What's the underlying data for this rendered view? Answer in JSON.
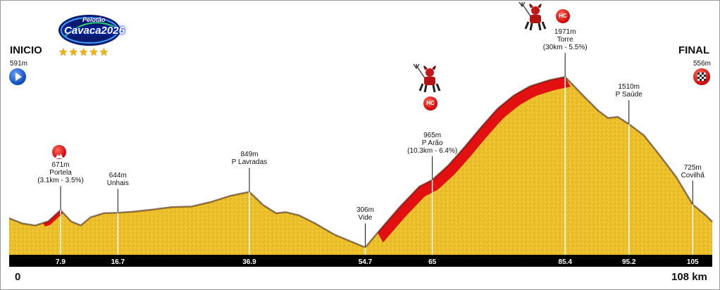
{
  "chart_data": {
    "type": "area",
    "title": "",
    "xlabel": "",
    "ylabel": "",
    "xlim": [
      0,
      108
    ],
    "x_unit": "km",
    "y_unit": "m",
    "profile": [
      [
        0,
        591
      ],
      [
        2,
        540
      ],
      [
        4,
        520
      ],
      [
        6,
        560
      ],
      [
        7.9,
        671
      ],
      [
        9.5,
        560
      ],
      [
        11,
        520
      ],
      [
        12.5,
        600
      ],
      [
        14.5,
        640
      ],
      [
        16.7,
        644
      ],
      [
        19,
        655
      ],
      [
        22,
        675
      ],
      [
        25,
        700
      ],
      [
        28,
        705
      ],
      [
        31,
        750
      ],
      [
        34,
        810
      ],
      [
        36.9,
        849
      ],
      [
        39,
        720
      ],
      [
        41,
        640
      ],
      [
        42.5,
        650
      ],
      [
        44.5,
        620
      ],
      [
        47,
        540
      ],
      [
        50,
        430
      ],
      [
        54.7,
        306
      ],
      [
        57,
        480
      ],
      [
        60,
        700
      ],
      [
        63,
        900
      ],
      [
        65,
        965
      ],
      [
        67.5,
        1110
      ],
      [
        70,
        1290
      ],
      [
        72.5,
        1480
      ],
      [
        75,
        1660
      ],
      [
        77.5,
        1790
      ],
      [
        80,
        1880
      ],
      [
        83,
        1940
      ],
      [
        85.4,
        1971
      ],
      [
        88,
        1800
      ],
      [
        90.5,
        1640
      ],
      [
        92,
        1570
      ],
      [
        93.5,
        1580
      ],
      [
        95.2,
        1510
      ],
      [
        97.5,
        1400
      ],
      [
        100,
        1200
      ],
      [
        102.5,
        990
      ],
      [
        105,
        725
      ],
      [
        107,
        620
      ],
      [
        108,
        556
      ]
    ],
    "climbs": [
      {
        "from": 5.2,
        "to": 7.9
      },
      {
        "from": 56.6,
        "to": 65
      },
      {
        "from": 65,
        "to": 85.4
      }
    ],
    "km_ticks": [
      "7.9",
      "16.7",
      "36.9",
      "54.7",
      "65",
      "85.4",
      "95.2",
      "105"
    ],
    "km_tick_values": [
      7.9,
      16.7,
      36.9,
      54.7,
      65,
      85.4,
      95.2,
      105
    ]
  },
  "start": {
    "label": "INICIO",
    "altitude": "591m",
    "km": "0"
  },
  "finish": {
    "label": "FINAL",
    "altitude": "556m",
    "km": "108 km"
  },
  "logo": {
    "top": "Pelotão",
    "name": "Cavaca2026",
    "stars": "★★★★★"
  },
  "points": [
    {
      "km": 7.9,
      "alt": 671,
      "lines": [
        "671m",
        "Portela",
        "(3.1km - 3.5%)"
      ]
    },
    {
      "km": 16.7,
      "alt": 644,
      "lines": [
        "644m",
        "Unhais"
      ]
    },
    {
      "km": 36.9,
      "alt": 849,
      "lines": [
        "849m",
        "P Lavradas"
      ]
    },
    {
      "km": 54.7,
      "alt": 306,
      "lines": [
        "306m",
        "Vide"
      ]
    },
    {
      "km": 65,
      "alt": 965,
      "lines": [
        "965m",
        "P Arão",
        "(10.3km - 6.4%)"
      ]
    },
    {
      "km": 85.4,
      "alt": 1971,
      "lines": [
        "1971m",
        "Torre",
        "(30km - 5.5%)"
      ]
    },
    {
      "km": 95.2,
      "alt": 1510,
      "lines": [
        "1510m",
        "P Saúde"
      ]
    },
    {
      "km": 105,
      "alt": 725,
      "lines": [
        "725m",
        "Covilhã"
      ]
    }
  ],
  "badges": {
    "hc": "HC"
  },
  "colors": {
    "terrain": "#ecc12c",
    "terrain_dark": "#c99a12",
    "climb": "#e21010",
    "axis_bar": "#000000",
    "ridge": "#3a1a0e"
  },
  "icons": [
    "start-arrow-icon",
    "finish-flag-icon",
    "mountain-cat4-icon",
    "hc-icon",
    "devil-icon"
  ]
}
